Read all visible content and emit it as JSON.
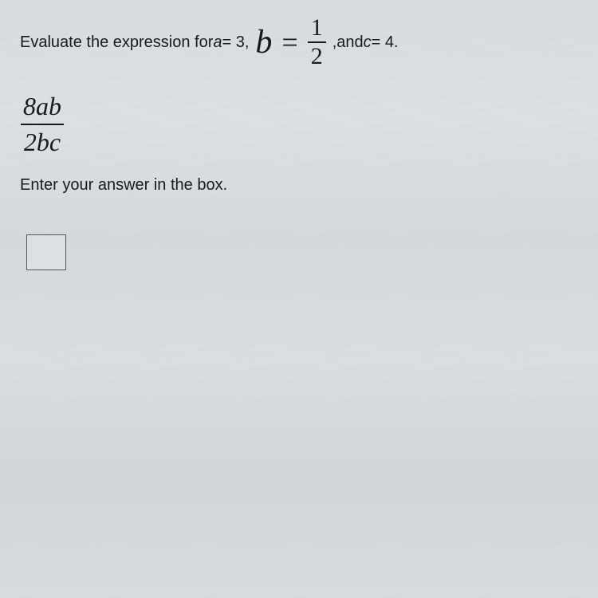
{
  "prompt": {
    "prefix": "Evaluate the expression for ",
    "a_var": "a",
    "a_equals": " = 3, ",
    "b_var": "b",
    "b_equals_sign": "=",
    "b_frac_num": "1",
    "b_frac_den": "2",
    "comma": " , ",
    "and_text": "and ",
    "c_var": "c",
    "c_equals": " = 4."
  },
  "expression": {
    "numerator": "8ab",
    "denominator": "2bc"
  },
  "instruction": "Enter your answer in the box.",
  "styling": {
    "body_bg": "#d8dce0",
    "text_color": "#1a1a1a",
    "prompt_fontsize": 20,
    "b_var_fontsize": 42,
    "fraction_inline_fontsize": 30,
    "expression_fontsize": 32,
    "instruction_fontsize": 20,
    "answer_box_width": 50,
    "answer_box_height": 45,
    "answer_box_border": "#555",
    "fraction_bar_color": "#1a1a1a"
  }
}
